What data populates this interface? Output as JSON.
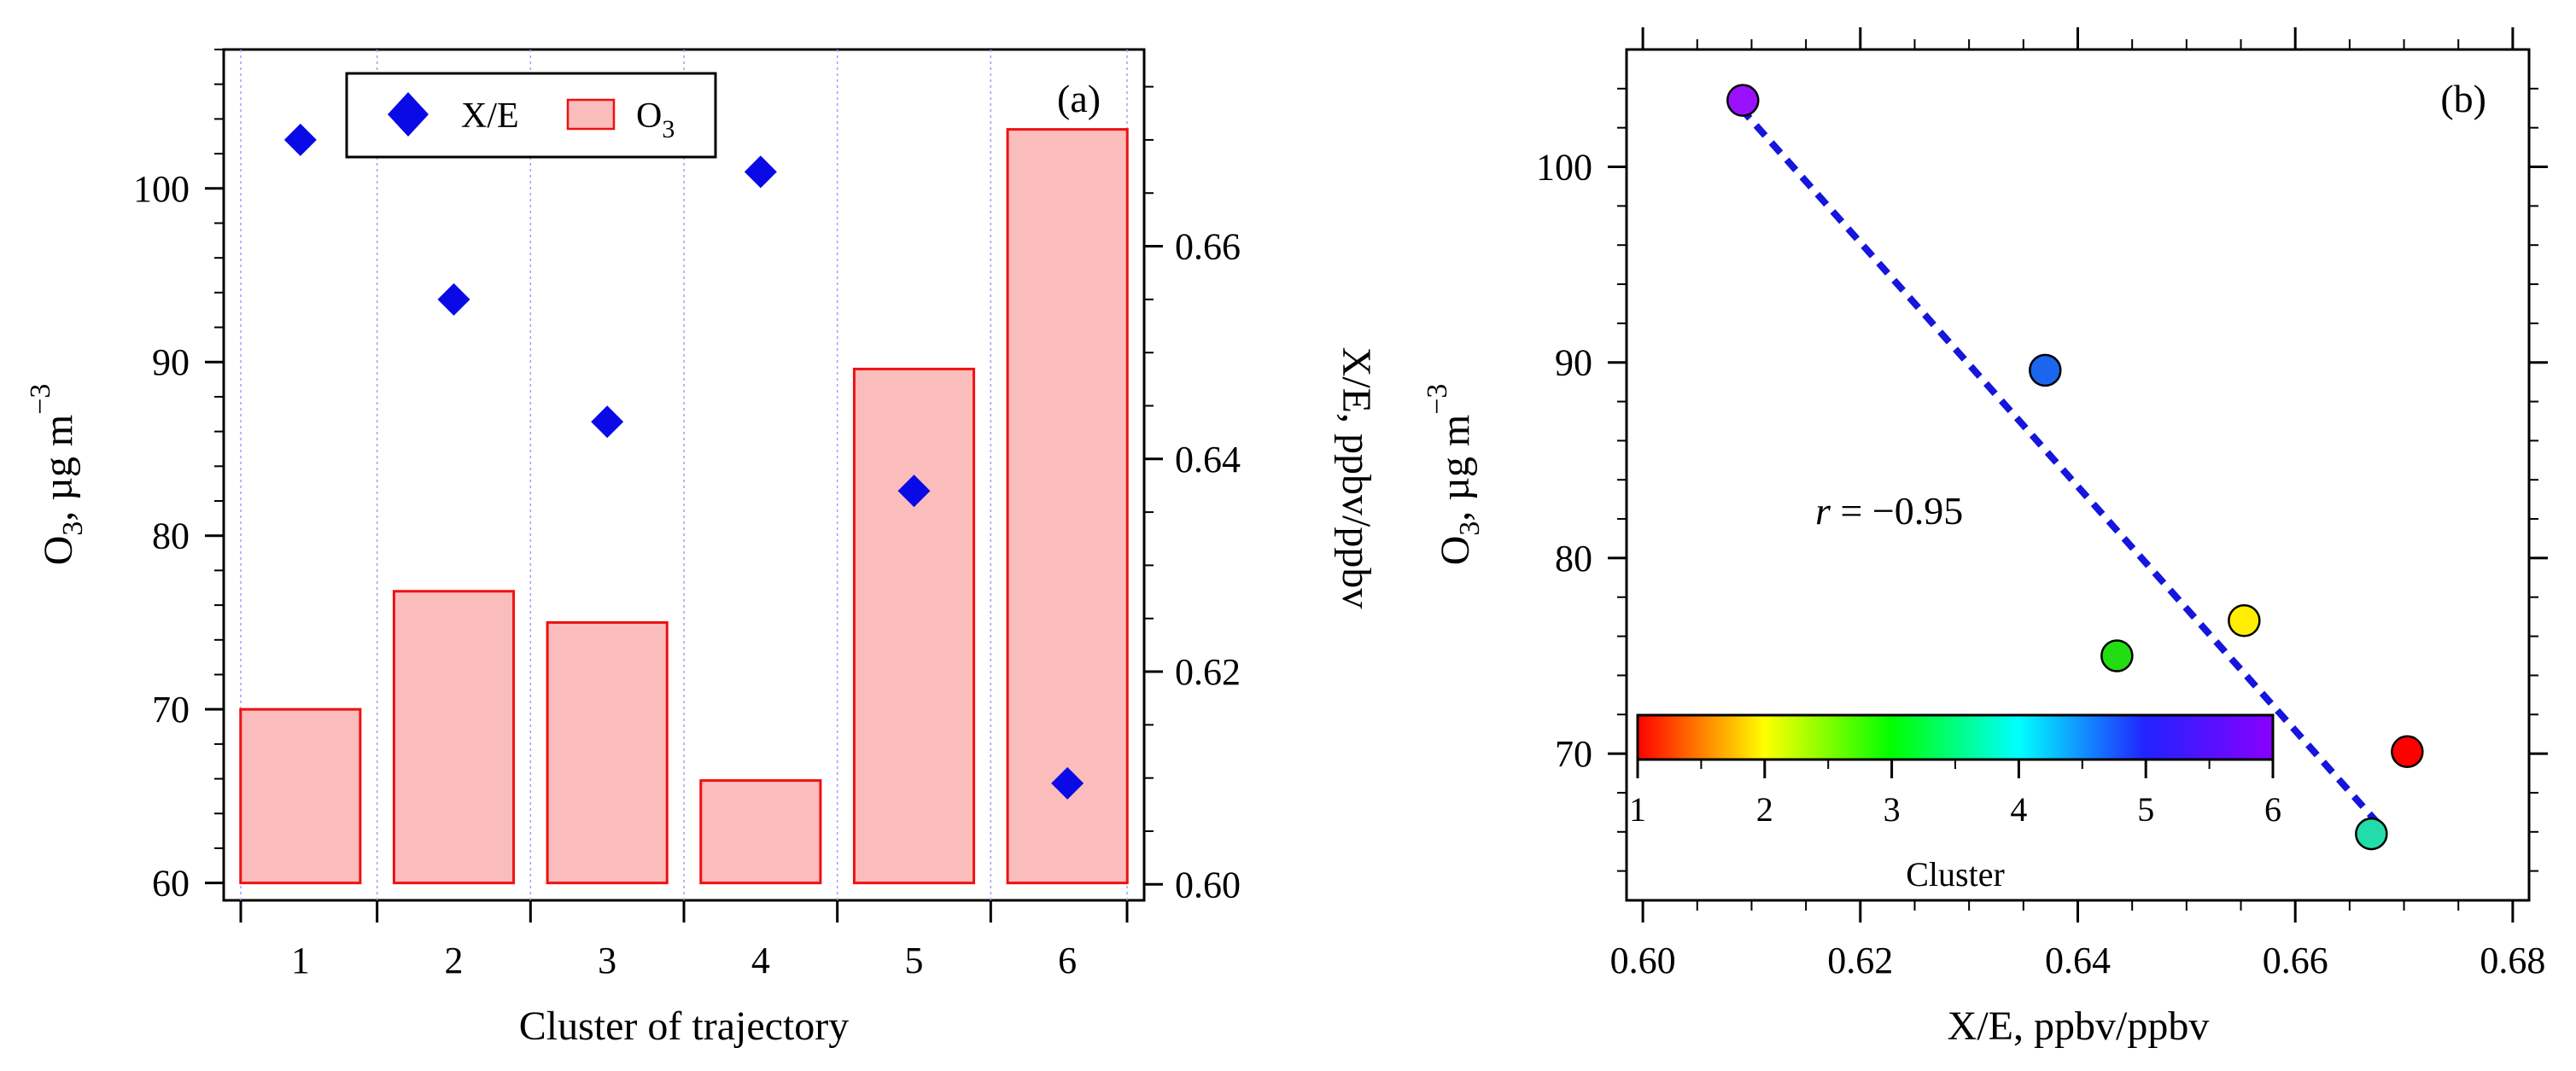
{
  "chart_data": [
    {
      "type": "bar",
      "panel_label": "(a)",
      "categories": [
        "1",
        "2",
        "3",
        "4",
        "5",
        "6"
      ],
      "xlabel": "Cluster of trajectory",
      "ylabel_parts": {
        "pre": "O",
        "sub": "3",
        "mid": ", µg m",
        "sup": "−3"
      },
      "ylim": [
        59,
        108
      ],
      "yticks": [
        60,
        70,
        80,
        90,
        100
      ],
      "y2label": "X/E, ppbv/ppbv",
      "y2lim": [
        0.5985,
        0.6785
      ],
      "y2ticks": [
        0.6,
        0.62,
        0.64,
        0.66
      ],
      "y2tick_labels": [
        "0.60",
        "0.62",
        "0.64",
        "0.66"
      ],
      "series": [
        {
          "name": "O3",
          "legend_pre": "O",
          "legend_sub": "3",
          "kind": "bar",
          "axis": "left",
          "values": [
            70.0,
            76.8,
            75.0,
            65.9,
            89.6,
            103.4
          ],
          "color": "#fbbcbc",
          "edge": "#ee1111"
        },
        {
          "name": "X/E",
          "legend_label": "X/E",
          "kind": "marker",
          "axis": "right",
          "values": [
            0.67,
            0.655,
            0.6435,
            0.667,
            0.637,
            0.6095
          ],
          "color": "#0a0ae6"
        }
      ],
      "legend_position": "top-left"
    },
    {
      "type": "scatter",
      "panel_label": "(b)",
      "xlabel": "X/E, ppbv/ppbv",
      "ylabel_parts": {
        "pre": "O",
        "sub": "3",
        "mid": ", µg m",
        "sup": "−3"
      },
      "xlim": [
        0.5985,
        0.6815
      ],
      "xticks": [
        0.6,
        0.62,
        0.64,
        0.66,
        0.68
      ],
      "xtick_labels": [
        "0.60",
        "0.62",
        "0.64",
        "0.66",
        "0.68"
      ],
      "ylim": [
        62.5,
        106
      ],
      "yticks": [
        70,
        80,
        90,
        100
      ],
      "points": [
        {
          "cluster": 1,
          "x": 0.6703,
          "y": 70.1,
          "color": "#ff0000"
        },
        {
          "cluster": 2,
          "x": 0.6553,
          "y": 76.8,
          "color": "#ffee00"
        },
        {
          "cluster": 3,
          "x": 0.6436,
          "y": 75.0,
          "color": "#22dd11"
        },
        {
          "cluster": 4,
          "x": 0.667,
          "y": 65.9,
          "color": "#22ddaa"
        },
        {
          "cluster": 5,
          "x": 0.637,
          "y": 89.6,
          "color": "#1a66ee"
        },
        {
          "cluster": 6,
          "x": 0.6092,
          "y": 103.4,
          "color": "#9911ff"
        }
      ],
      "fit_line": {
        "x": [
          0.609,
          0.6675
        ],
        "y": [
          103.0,
          66.5
        ],
        "color": "#1515dd",
        "style": "dashed"
      },
      "annotation": {
        "r_symbol": "r",
        "r_text": " = −0.95"
      },
      "colorbar": {
        "label": "Cluster",
        "range": [
          1,
          6
        ],
        "ticks": [
          1,
          2,
          3,
          4,
          5,
          6
        ],
        "stops": [
          "#ff0000",
          "#ffff00",
          "#00ff00",
          "#00ffff",
          "#2222ff",
          "#8800ff"
        ],
        "position": "bottom-left"
      }
    }
  ]
}
